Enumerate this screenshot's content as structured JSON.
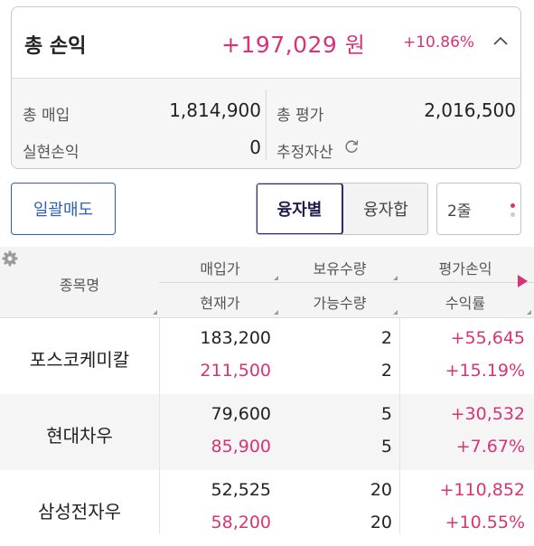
{
  "summary": {
    "title": "총 손익",
    "profit_amount": "+197,029",
    "currency_unit": "원",
    "profit_rate": "+10.86%",
    "total_purchase_label": "총 매입",
    "total_purchase_value": "1,814,900",
    "total_evaluation_label": "총 평가",
    "total_evaluation_value": "2,016,500",
    "realized_pl_label": "실현손익",
    "realized_pl_value": "0",
    "estimated_assets_label": "추정자산"
  },
  "controls": {
    "bulk_sell_label": "일괄매도",
    "tab_by_loan": "융자별",
    "tab_loan_total": "융자합",
    "rows_selector_value": "2줄"
  },
  "table": {
    "headers": {
      "name": "종목명",
      "purchase_price": "매입가",
      "current_price": "현재가",
      "holding_qty": "보유수량",
      "available_qty": "가능수량",
      "eval_pl": "평가손익",
      "return_rate": "수익률"
    },
    "rows": [
      {
        "name": "포스코케미칼",
        "purchase_price": "183,200",
        "current_price": "211,500",
        "holding_qty": "2",
        "available_qty": "2",
        "eval_pl": "+55,645",
        "return_rate": "+15.19%"
      },
      {
        "name": "현대차우",
        "purchase_price": "79,600",
        "current_price": "85,900",
        "holding_qty": "5",
        "available_qty": "5",
        "eval_pl": "+30,532",
        "return_rate": "+7.67%"
      },
      {
        "name": "삼성전자우",
        "purchase_price": "52,525",
        "current_price": "58,200",
        "holding_qty": "20",
        "available_qty": "20",
        "eval_pl": "+110,852",
        "return_rate": "+10.55%"
      }
    ]
  },
  "colors": {
    "profit": "#d63477",
    "accent_blue": "#2d5fb8",
    "selected_tab_border": "#2b2b6b"
  },
  "icons": [
    "chevron-up-icon",
    "refresh-icon",
    "gear-icon",
    "scroll-right-icon",
    "dots-icon"
  ]
}
